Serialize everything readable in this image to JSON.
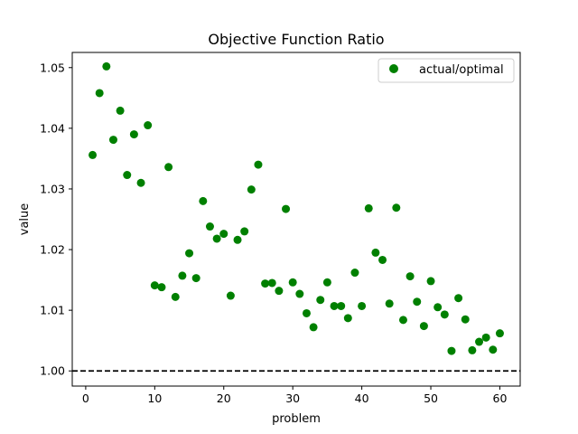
{
  "chart_data": {
    "type": "scatter",
    "title": "Objective Function Ratio",
    "xlabel": "problem",
    "ylabel": "value",
    "xlim": [
      -1.95,
      62.95
    ],
    "ylim": [
      0.9975,
      1.0525
    ],
    "xticks": [
      0,
      10,
      20,
      30,
      40,
      50,
      60
    ],
    "xtick_labels": [
      "0",
      "10",
      "20",
      "30",
      "40",
      "50",
      "60"
    ],
    "yticks": [
      1.0,
      1.01,
      1.02,
      1.03,
      1.04,
      1.05
    ],
    "ytick_labels": [
      "1.00",
      "1.01",
      "1.02",
      "1.03",
      "1.04",
      "1.05"
    ],
    "grid": false,
    "legend": {
      "position": "top-right",
      "entries": [
        "actual/optimal"
      ]
    },
    "reference_line": {
      "y": 1.0,
      "style": "dashed",
      "color": "#000000"
    },
    "series": [
      {
        "name": "actual/optimal",
        "color": "#008000",
        "marker": "circle",
        "x": [
          1,
          2,
          3,
          4,
          5,
          6,
          7,
          8,
          9,
          10,
          11,
          12,
          13,
          14,
          15,
          16,
          17,
          18,
          19,
          20,
          21,
          22,
          23,
          24,
          25,
          26,
          27,
          28,
          29,
          30,
          31,
          32,
          33,
          34,
          35,
          36,
          37,
          38,
          39,
          40,
          41,
          42,
          43,
          44,
          45,
          46,
          47,
          48,
          49,
          50,
          51,
          52,
          53,
          54,
          55,
          56,
          57,
          58,
          59,
          60
        ],
        "y": [
          1.0356,
          1.0458,
          1.0502,
          1.0381,
          1.0429,
          1.0323,
          1.039,
          1.031,
          1.0405,
          1.0141,
          1.0138,
          1.0336,
          1.0122,
          1.0157,
          1.0194,
          1.0153,
          1.028,
          1.0238,
          1.0218,
          1.0226,
          1.0124,
          1.0216,
          1.023,
          1.0299,
          1.034,
          1.0144,
          1.0145,
          1.0132,
          1.0267,
          1.0146,
          1.0127,
          1.0095,
          1.0072,
          1.0117,
          1.0146,
          1.0107,
          1.0107,
          1.0087,
          1.0162,
          1.0107,
          1.0268,
          1.0195,
          1.0183,
          1.0111,
          1.0269,
          1.0084,
          1.0156,
          1.0114,
          1.0074,
          1.0148,
          1.0105,
          1.0093,
          1.0033,
          1.012,
          1.0085,
          1.0034,
          1.0048,
          1.0055,
          1.0035,
          1.0062
        ]
      }
    ]
  }
}
